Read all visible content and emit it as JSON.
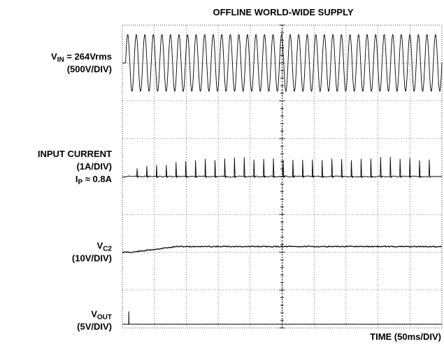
{
  "chart_data": {
    "type": "line",
    "title": "OFFLINE WORLD-WIDE SUPPLY",
    "time_label": "TIME (50ms/DIV)",
    "divisions": {
      "horizontal": 10,
      "vertical": 8
    },
    "grid": true,
    "channels": [
      {
        "id": "vin",
        "label_lines": [
          {
            "main": "V",
            "sub": "IN",
            "rest": " = 264Vrms"
          },
          {
            "main": "(500V/DIV)",
            "sub": "",
            "rest": ""
          }
        ],
        "baseline_div": 1.0,
        "description": "AC line voltage, ~60 Hz sine, amplitude about 0.75 div, starts at t≈0.1 div"
      },
      {
        "id": "iin",
        "label_lines": [
          {
            "main": "INPUT CURRENT",
            "sub": "",
            "rest": ""
          },
          {
            "main": "(1A/DIV)",
            "sub": "",
            "rest": ""
          },
          {
            "main": "I",
            "sub": "P",
            "rest": " ≈ 0.8A"
          }
        ],
        "baseline_div": 4.0,
        "peak_A": 0.8,
        "description": "Narrow current pulses at line peaks, rising from startup to about 0.5 div"
      },
      {
        "id": "vc2",
        "label_lines": [
          {
            "main": "V",
            "sub": "C2",
            "rest": ""
          },
          {
            "main": "(10V/DIV)",
            "sub": "",
            "rest": ""
          }
        ],
        "baseline_div": 6.0,
        "rise_div": 0.15,
        "description": "Capacitor voltage rising slightly after startup, then flat"
      },
      {
        "id": "vout",
        "label_lines": [
          {
            "main": "V",
            "sub": "OUT",
            "rest": ""
          },
          {
            "main": "(5V/DIV)",
            "sub": "",
            "rest": ""
          }
        ],
        "baseline_div": 7.9,
        "spike_at_div": 0.2,
        "description": "Output voltage, small spike at startup then near zero"
      }
    ]
  }
}
